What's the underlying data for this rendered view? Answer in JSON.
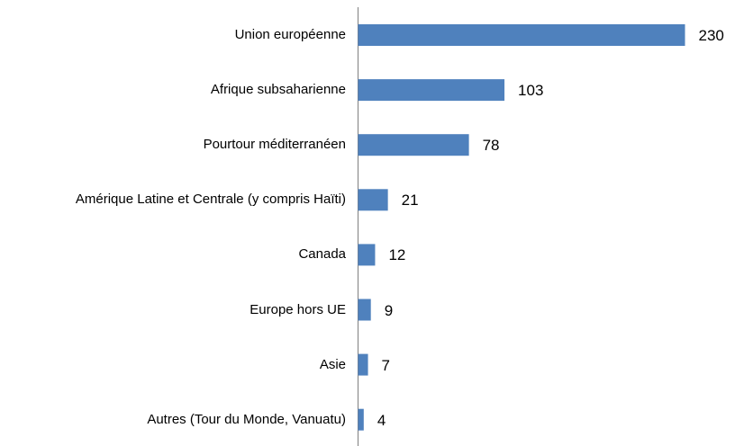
{
  "chart_data": {
    "type": "bar",
    "orientation": "horizontal",
    "categories": [
      "Union européenne",
      "Afrique subsaharienne",
      "Pourtour méditerranéen",
      "Amérique Latine et Centrale (y compris Haïti)",
      "Canada",
      "Europe hors UE",
      "Asie",
      "Autres (Tour du Monde, Vanuatu)"
    ],
    "values": [
      230,
      103,
      78,
      21,
      12,
      9,
      7,
      4
    ],
    "color": "#4f81bd"
  }
}
